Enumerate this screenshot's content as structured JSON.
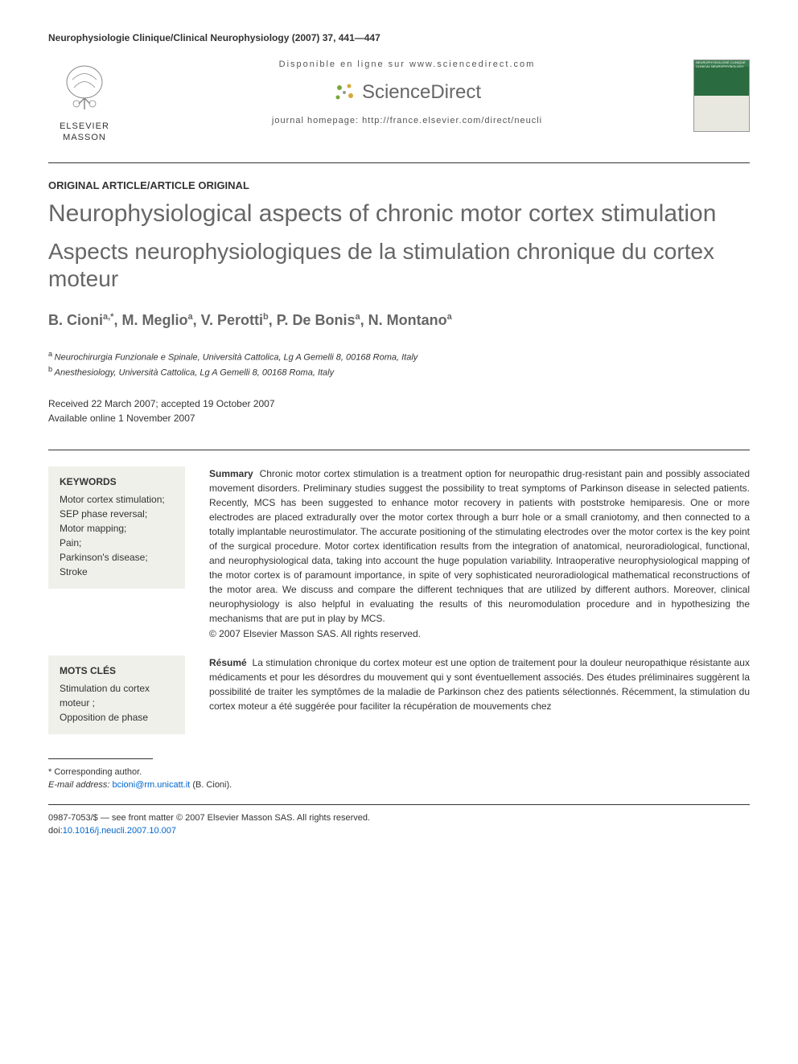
{
  "journal_header": "Neurophysiologie Clinique/Clinical Neurophysiology (2007) 37, 441—447",
  "availability_text": "Disponible en ligne sur www.sciencedirect.com",
  "sciencedirect_label": "ScienceDirect",
  "homepage_text": "journal homepage: http://france.elsevier.com/direct/neucli",
  "elsevier_name": "ELSEVIER",
  "masson_name": "MASSON",
  "cover_text": "NEUROPHYSIOLOGIE CLINIQUE CLINICAL NEUROPHYSIOLOGY",
  "article_type": "ORIGINAL ARTICLE/ARTICLE ORIGINAL",
  "title_en": "Neurophysiological aspects of chronic motor cortex stimulation",
  "title_fr": "Aspects neurophysiologiques de la stimulation chronique du cortex moteur",
  "authors_line": "B. Cioni",
  "authors": [
    {
      "name": "B. Cioni",
      "sup": "a,*"
    },
    {
      "name": "M. Meglio",
      "sup": "a"
    },
    {
      "name": "V. Perotti",
      "sup": "b"
    },
    {
      "name": "P. De Bonis",
      "sup": "a"
    },
    {
      "name": "N. Montano",
      "sup": "a"
    }
  ],
  "affiliations": [
    {
      "sup": "a",
      "text": "Neurochirurgia Funzionale e Spinale, Università Cattolica, Lg A Gemelli 8, 00168 Roma, Italy"
    },
    {
      "sup": "b",
      "text": "Anesthesiology, Università Cattolica, Lg A Gemelli 8, 00168 Roma, Italy"
    }
  ],
  "dates": {
    "received": "Received 22 March 2007; accepted 19 October 2007",
    "online": "Available online 1 November 2007"
  },
  "keywords": {
    "title": "KEYWORDS",
    "items": "Motor cortex stimulation;\nSEP phase reversal;\nMotor mapping;\nPain;\nParkinson's disease;\nStroke"
  },
  "summary": {
    "label": "Summary",
    "text": "Chronic motor cortex stimulation is a treatment option for neuropathic drug-resistant pain and possibly associated movement disorders. Preliminary studies suggest the possibility to treat symptoms of Parkinson disease in selected patients. Recently, MCS has been suggested to enhance motor recovery in patients with poststroke hemiparesis. One or more electrodes are placed extradurally over the motor cortex through a burr hole or a small craniotomy, and then connected to a totally implantable neurostimulator. The accurate positioning of the stimulating electrodes over the motor cortex is the key point of the surgical procedure. Motor cortex identification results from the integration of anatomical, neuroradiological, functional, and neurophysiological data, taking into account the huge population variability. Intraoperative neurophysiological mapping of the motor cortex is of paramount importance, in spite of very sophisticated neuroradiological mathematical reconstructions of the motor area. We discuss and compare the different techniques that are utilized by different authors. Moreover, clinical neurophysiology is also helpful in evaluating the results of this neuromodulation procedure and in hypothesizing the mechanisms that are put in play by MCS.",
    "copyright": "© 2007 Elsevier Masson SAS. All rights reserved."
  },
  "motscles": {
    "title": "MOTS CLÉS",
    "items": "Stimulation du cortex moteur ;\nOpposition de phase"
  },
  "resume": {
    "label": "Résumé",
    "text": "La stimulation chronique du cortex moteur est une option de traitement pour la douleur neuropathique résistante aux médicaments et pour les désordres du mouvement qui y sont éventuellement associés. Des études préliminaires suggèrent la possibilité de traiter les symptômes de la maladie de Parkinson chez des patients sélectionnés. Récemment, la stimulation du cortex moteur a été suggérée pour faciliter la récupération de mouvements chez"
  },
  "corresponding": {
    "star": "* Corresponding author.",
    "email_label": "E-mail address:",
    "email": "bcioni@rm.unicatt.it",
    "email_author": "(B. Cioni)."
  },
  "footer": {
    "issn": "0987-7053/$ — see front matter © 2007 Elsevier Masson SAS. All rights reserved.",
    "doi_label": "doi:",
    "doi": "10.1016/j.neucli.2007.10.007"
  },
  "colors": {
    "title_gray": "#666666",
    "text_color": "#333333",
    "link_blue": "#0066cc",
    "box_bg": "#f0f0eb",
    "cover_green": "#2a6b3f"
  }
}
